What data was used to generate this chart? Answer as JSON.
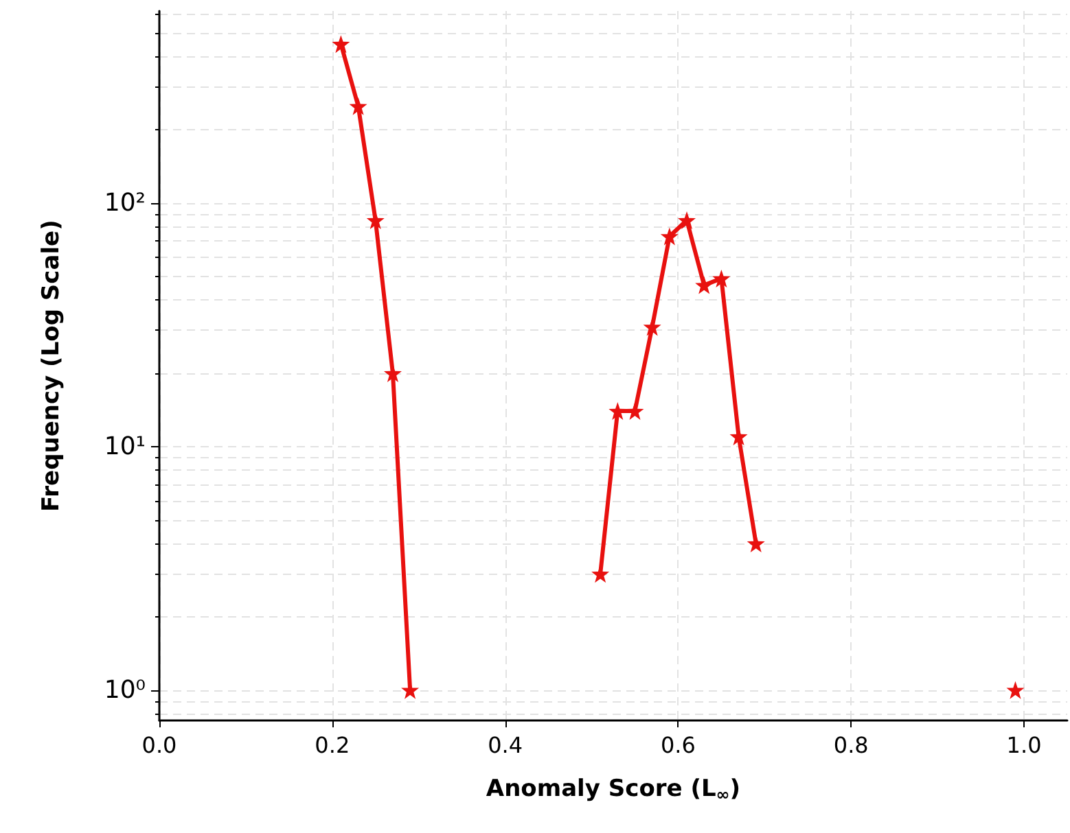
{
  "chart_data": {
    "type": "line",
    "xlabel": "Anomaly Score (L$_{∞}$)",
    "ylabel": "Frequency (Log Scale)",
    "x": [
      0.21,
      0.23,
      0.25,
      0.27,
      0.29,
      0.4,
      0.51,
      0.53,
      0.55,
      0.57,
      0.59,
      0.61,
      0.63,
      0.65,
      0.67,
      0.69,
      0.8,
      0.99
    ],
    "series": [
      {
        "color": "#e8110f",
        "values": [
          450,
          250,
          85,
          20,
          1,
          null,
          3,
          14,
          14,
          31,
          73,
          85,
          46,
          49,
          11,
          4,
          null,
          1
        ]
      }
    ],
    "log": "y",
    "xlim": [
      0,
      1.05
    ],
    "xticks": [
      {
        "value": 0,
        "label": "0.0"
      },
      0.2,
      0.4,
      0.6,
      0.8,
      {
        "value": 1,
        "label": "1.0"
      }
    ],
    "ylim": [
      0.75,
      615
    ],
    "yticks": [
      {
        "value": 1,
        "label": "10⁰"
      },
      {
        "value": 10,
        "label": "10¹"
      },
      {
        "value": 100,
        "label": "10²"
      }
    ],
    "grid": true,
    "marker": "star",
    "line_style": "solid"
  }
}
